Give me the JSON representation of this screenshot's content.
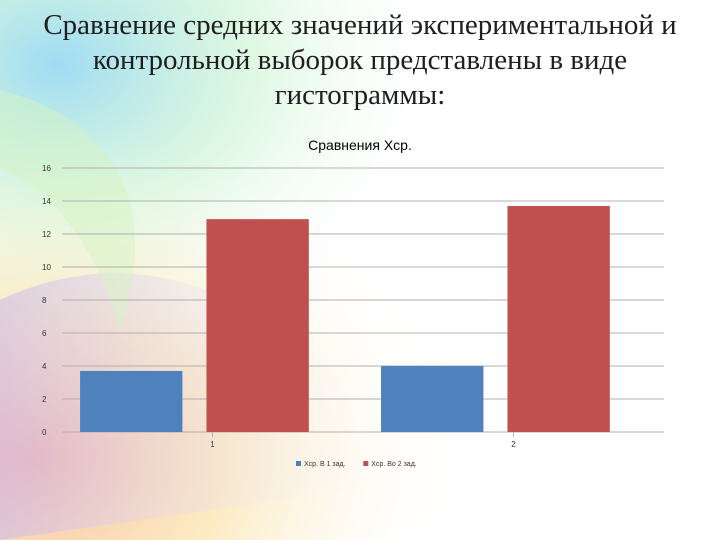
{
  "slide": {
    "title": "Сравнение средних значений экспериментальной и контрольной выборок представлены в виде гистограммы:"
  },
  "chart_data": {
    "type": "bar",
    "title": "Сравнения Хср.",
    "xlabel": "",
    "ylabel": "",
    "categories": [
      "1",
      "2"
    ],
    "series": [
      {
        "name": "Хср. В 1 зад.",
        "color": "#4F81BD",
        "values": [
          3.7,
          4.0
        ]
      },
      {
        "name": "Хср. Во 2 зад.",
        "color": "#C0504D",
        "values": [
          12.9,
          13.7
        ]
      }
    ],
    "ylim": [
      0,
      16
    ],
    "yticks": [
      0,
      2,
      4,
      6,
      8,
      10,
      12,
      14,
      16
    ],
    "grid": true,
    "legend": "bottom"
  }
}
